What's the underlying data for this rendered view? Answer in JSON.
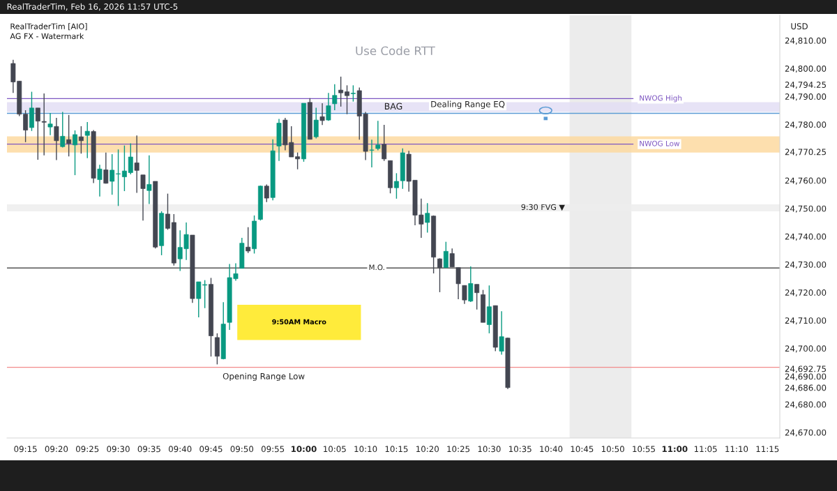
{
  "chart_data": {
    "type": "candlestick",
    "subtitle": "Use Code RTT",
    "ylabel": "USD",
    "annotations": [
      "RealTraderTim, Feb 16, 2026 11:57 UTC-5",
      "RealTraderTim [AIO]",
      "AG FX - Watermark",
      "9:50AM Macro"
    ],
    "x": [
      "2026-02-16T09:13",
      "2026-02-16T09:14",
      "2026-02-16T09:15",
      "2026-02-16T09:16",
      "2026-02-16T09:17",
      "2026-02-16T09:18",
      "2026-02-16T09:19",
      "2026-02-16T09:20",
      "2026-02-16T09:21",
      "2026-02-16T09:22",
      "2026-02-16T09:23",
      "2026-02-16T09:24",
      "2026-02-16T09:25",
      "2026-02-16T09:26",
      "2026-02-16T09:27",
      "2026-02-16T09:28",
      "2026-02-16T09:29",
      "2026-02-16T09:30",
      "2026-02-16T09:31",
      "2026-02-16T09:32",
      "2026-02-16T09:33",
      "2026-02-16T09:34",
      "2026-02-16T09:35",
      "2026-02-16T09:36",
      "2026-02-16T09:37",
      "2026-02-16T09:38",
      "2026-02-16T09:39",
      "2026-02-16T09:40",
      "2026-02-16T09:41",
      "2026-02-16T09:42",
      "2026-02-16T09:43",
      "2026-02-16T09:44",
      "2026-02-16T09:45",
      "2026-02-16T09:46",
      "2026-02-16T09:47",
      "2026-02-16T09:48",
      "2026-02-16T09:49",
      "2026-02-16T09:50",
      "2026-02-16T09:51",
      "2026-02-16T09:52",
      "2026-02-16T09:53",
      "2026-02-16T09:54",
      "2026-02-16T09:55",
      "2026-02-16T09:56",
      "2026-02-16T09:57",
      "2026-02-16T09:58",
      "2026-02-16T09:59",
      "2026-02-16T10:00",
      "2026-02-16T10:01",
      "2026-02-16T10:02",
      "2026-02-16T10:03",
      "2026-02-16T10:04",
      "2026-02-16T10:05",
      "2026-02-16T10:06",
      "2026-02-16T10:07",
      "2026-02-16T10:08",
      "2026-02-16T10:09",
      "2026-02-16T10:10",
      "2026-02-16T10:11",
      "2026-02-16T10:12",
      "2026-02-16T10:13",
      "2026-02-16T10:14",
      "2026-02-16T10:15",
      "2026-02-16T10:16",
      "2026-02-16T10:17",
      "2026-02-16T10:18",
      "2026-02-16T10:19",
      "2026-02-16T10:20",
      "2026-02-16T10:21",
      "2026-02-16T10:22",
      "2026-02-16T10:23",
      "2026-02-16T10:24",
      "2026-02-16T10:25",
      "2026-02-16T10:26",
      "2026-02-16T10:27",
      "2026-02-16T10:28",
      "2026-02-16T10:29",
      "2026-02-16T10:30",
      "2026-02-16T10:31",
      "2026-02-16T10:32",
      "2026-02-16T10:33"
    ],
    "ohlc": [
      [
        24801.8,
        24803.1,
        24791.3,
        24795.2
      ],
      [
        24795.5,
        24795.6,
        24783.0,
        24783.7
      ],
      [
        24783.7,
        24785.1,
        24773.7,
        24778.0
      ],
      [
        24778.9,
        24791.7,
        24777.7,
        24785.9
      ],
      [
        24785.9,
        24785.9,
        24767.4,
        24781.2
      ],
      [
        24781.1,
        24791.1,
        24769.0,
        24780.8
      ],
      [
        24779.1,
        24784.1,
        24776.2,
        24780.2
      ],
      [
        24779.3,
        24782.4,
        24767.3,
        24774.2
      ],
      [
        24772.1,
        24784.5,
        24771.8,
        24775.8
      ],
      [
        24774.6,
        24783.4,
        24768.6,
        24773.2
      ],
      [
        24772.7,
        24777.9,
        24761.9,
        24776.4
      ],
      [
        24775.6,
        24779.4,
        24769.6,
        24774.2
      ],
      [
        24776.1,
        24780.9,
        24768.0,
        24777.6
      ],
      [
        24777.5,
        24778.0,
        24759.1,
        24760.8
      ],
      [
        24760.3,
        24765.6,
        24754.3,
        24764.1
      ],
      [
        24763.8,
        24770.0,
        24758.9,
        24759.0
      ],
      [
        24759.7,
        24769.4,
        24754.9,
        24763.7
      ],
      [
        24762.3,
        24771.1,
        24750.9,
        24762.4
      ],
      [
        24761.3,
        24772.5,
        24756.2,
        24763.4
      ],
      [
        24762.8,
        24773.3,
        24762.2,
        24768.4
      ],
      [
        24766.3,
        24776.1,
        24755.6,
        24763.6
      ],
      [
        24762.0,
        24762.0,
        24745.7,
        24757.1
      ],
      [
        24756.4,
        24769.0,
        24751.6,
        24758.6
      ],
      [
        24759.7,
        24759.7,
        24735.7,
        24736.2
      ],
      [
        24736.7,
        24749.0,
        24733.3,
        24748.3
      ],
      [
        24748.0,
        24755.3,
        24742.4,
        24742.9
      ],
      [
        24745.0,
        24748.0,
        24729.6,
        24730.5
      ],
      [
        24732.0,
        24742.2,
        24727.7,
        24736.1
      ],
      [
        24735.6,
        24745.0,
        24731.6,
        24740.7
      ],
      [
        24740.5,
        24740.5,
        24716.3,
        24717.8
      ],
      [
        24717.8,
        24723.8,
        24711.1,
        24723.8
      ],
      [
        24722.6,
        24724.4,
        24714.4,
        24722.8
      ],
      [
        24722.9,
        24725.2,
        24697.1,
        24704.5
      ],
      [
        24703.9,
        24705.4,
        24694.3,
        24697.2
      ],
      [
        24696.3,
        24716.5,
        24696.1,
        24708.7
      ],
      [
        24709.3,
        24730.2,
        24706.6,
        24725.3
      ],
      [
        24724.9,
        24730.4,
        24724.2,
        24726.7
      ],
      [
        24728.6,
        24739.5,
        24728.6,
        24737.6
      ],
      [
        24736.2,
        24743.3,
        24734.1,
        24734.8
      ],
      [
        24735.6,
        24747.5,
        24733.9,
        24745.5
      ],
      [
        24746.1,
        24758.2,
        24745.7,
        24758.0
      ],
      [
        24758.0,
        24758.6,
        24752.3,
        24753.7
      ],
      [
        24753.9,
        24774.7,
        24752.9,
        24770.6
      ],
      [
        24772.3,
        24782.0,
        24767.0,
        24780.5
      ],
      [
        24781.6,
        24782.4,
        24770.8,
        24772.7
      ],
      [
        24773.6,
        24779.4,
        24768.4,
        24768.4
      ],
      [
        24768.5,
        24770.0,
        24764.0,
        24767.7
      ],
      [
        24767.7,
        24787.6,
        24766.7,
        24787.6
      ],
      [
        24787.9,
        24789.4,
        24774.7,
        24774.7
      ],
      [
        24775.6,
        24786.0,
        24775.0,
        24781.6
      ],
      [
        24782.8,
        24787.6,
        24779.8,
        24781.4
      ],
      [
        24781.6,
        24791.3,
        24781.3,
        24786.7
      ],
      [
        24787.4,
        24794.4,
        24785.1,
        24790.4
      ],
      [
        24792.3,
        24797.1,
        24786.4,
        24791.3
      ],
      [
        24791.7,
        24794.0,
        24783.7,
        24790.3
      ],
      [
        24791.0,
        24794.0,
        24788.2,
        24791.2
      ],
      [
        24792.1,
        24793.2,
        24774.6,
        24783.0
      ],
      [
        24783.8,
        24784.5,
        24767.3,
        24770.4
      ],
      [
        24770.8,
        24774.6,
        24764.7,
        24770.9
      ],
      [
        24771.4,
        24781.3,
        24770.8,
        24772.7
      ],
      [
        24772.9,
        24779.9,
        24767.0,
        24767.7
      ],
      [
        24767.1,
        24767.1,
        24755.4,
        24757.4
      ],
      [
        24757.4,
        24762.6,
        24753.5,
        24759.7
      ],
      [
        24759.9,
        24771.5,
        24757.0,
        24769.9
      ],
      [
        24769.4,
        24770.6,
        24756.0,
        24759.7
      ],
      [
        24760.1,
        24760.1,
        24744.0,
        24747.6
      ],
      [
        24747.7,
        24753.5,
        24739.5,
        24744.4
      ],
      [
        24745.0,
        24751.9,
        24741.4,
        24748.3
      ],
      [
        24747.3,
        24747.5,
        24726.8,
        24732.6
      ],
      [
        24732.0,
        24732.2,
        24720.1,
        24728.9
      ],
      [
        24728.9,
        24738.1,
        24728.9,
        24734.7
      ],
      [
        24733.9,
        24735.7,
        24729.1,
        24729.1
      ],
      [
        24728.9,
        24728.9,
        24717.6,
        24723.1
      ],
      [
        24722.5,
        24722.5,
        24715.9,
        24717.3
      ],
      [
        24716.9,
        24729.3,
        24716.6,
        24723.2
      ],
      [
        24722.9,
        24722.9,
        24713.9,
        24719.9
      ],
      [
        24719.2,
        24720.9,
        24709.3,
        24709.3
      ],
      [
        24708.5,
        24722.5,
        24705.4,
        24714.9
      ],
      [
        24715.3,
        24715.3,
        24699.0,
        24700.4
      ],
      [
        24699.0,
        24713.3,
        24697.8,
        24704.2
      ],
      [
        24703.7,
        24703.9,
        24685.5,
        24686.0
      ]
    ],
    "colors": [
      "#434651",
      "#434651",
      "#434651",
      "#089981",
      "#434651",
      "#434651",
      "#089981",
      "#434651",
      "#089981",
      "#434651",
      "#089981",
      "#434651",
      "#089981",
      "#434651",
      "#089981",
      "#434651",
      "#089981",
      "#089981",
      "#089981",
      "#089981",
      "#434651",
      "#434651",
      "#089981",
      "#434651",
      "#089981",
      "#434651",
      "#434651",
      "#089981",
      "#089981",
      "#434651",
      "#089981",
      "#089981",
      "#434651",
      "#434651",
      "#089981",
      "#089981",
      "#089981",
      "#089981",
      "#434651",
      "#089981",
      "#089981",
      "#434651",
      "#089981",
      "#089981",
      "#434651",
      "#434651",
      "#434651",
      "#089981",
      "#434651",
      "#089981",
      "#434651",
      "#089981",
      "#089981",
      "#434651",
      "#434651",
      "#089981",
      "#434651",
      "#434651",
      "#089981",
      "#089981",
      "#434651",
      "#434651",
      "#089981",
      "#089981",
      "#434651",
      "#434651",
      "#434651",
      "#089981",
      "#434651",
      "#434651",
      "#089981",
      "#434651",
      "#434651",
      "#434651",
      "#089981",
      "#434651",
      "#434651",
      "#089981",
      "#434651",
      "#089981",
      "#434651"
    ],
    "xlim": [
      "2026-02-16T09:12",
      "2026-02-16T11:17"
    ],
    "xticks": [
      {
        "value": "2026-02-16T09:15",
        "label": "09:15"
      },
      {
        "value": "2026-02-16T09:20",
        "label": "09:20"
      },
      {
        "value": "2026-02-16T09:25",
        "label": "09:25"
      },
      {
        "value": "2026-02-16T09:30",
        "label": "09:30"
      },
      {
        "value": "2026-02-16T09:35",
        "label": "09:35"
      },
      {
        "value": "2026-02-16T09:40",
        "label": "09:40"
      },
      {
        "value": "2026-02-16T09:45",
        "label": "09:45"
      },
      {
        "value": "2026-02-16T09:50",
        "label": "09:50"
      },
      {
        "value": "2026-02-16T09:55",
        "label": "09:55"
      },
      {
        "value": "2026-02-16T10:00",
        "label": "10:00"
      },
      {
        "value": "2026-02-16T10:05",
        "label": "10:05"
      },
      {
        "value": "2026-02-16T10:10",
        "label": "10:10"
      },
      {
        "value": "2026-02-16T10:15",
        "label": "10:15"
      },
      {
        "value": "2026-02-16T10:20",
        "label": "10:20"
      },
      {
        "value": "2026-02-16T10:25",
        "label": "10:25"
      },
      {
        "value": "2026-02-16T10:30",
        "label": "10:30"
      },
      {
        "value": "2026-02-16T10:35",
        "label": "10:35"
      },
      {
        "value": "2026-02-16T10:40",
        "label": "10:40"
      },
      {
        "value": "2026-02-16T10:45",
        "label": "10:45"
      },
      {
        "value": "2026-02-16T10:50",
        "label": "10:50"
      },
      {
        "value": "2026-02-16T10:55",
        "label": "10:55"
      },
      {
        "value": "2026-02-16T11:00",
        "label": "11:00"
      },
      {
        "value": "2026-02-16T11:05",
        "label": "11:05"
      },
      {
        "value": "2026-02-16T11:10",
        "label": "11:10"
      },
      {
        "value": "2026-02-16T11:15",
        "label": "11:15"
      }
    ],
    "ylim": [
      24668,
      24819
    ],
    "yticks": [
      {
        "value": 24810,
        "label": "24,810.00"
      },
      {
        "value": 24800,
        "label": "24,800.00"
      },
      {
        "value": 24794.25,
        "label": "24,794.25"
      },
      {
        "value": 24790,
        "label": "24,790.00"
      },
      {
        "value": 24780,
        "label": "24,780.00"
      },
      {
        "value": 24770.25,
        "label": "24,770.25"
      },
      {
        "value": 24760,
        "label": "24,760.00"
      },
      {
        "value": 24750,
        "label": "24,750.00"
      },
      {
        "value": 24740,
        "label": "24,740.00"
      },
      {
        "value": 24730,
        "label": "24,730.00"
      },
      {
        "value": 24720,
        "label": "24,720.00"
      },
      {
        "value": 24710,
        "label": "24,710.00"
      },
      {
        "value": 24700,
        "label": "24,700.00"
      },
      {
        "value": 24692.75,
        "label": "24,692.75"
      },
      {
        "value": 24690,
        "label": "24,690.00"
      },
      {
        "value": 24686,
        "label": "24,686.00"
      },
      {
        "value": 24680,
        "label": "24,680.00"
      },
      {
        "value": 24670,
        "label": "24,670.00"
      }
    ],
    "ref_lines": [
      {
        "axis": "y",
        "value": 24789.25,
        "label": "NWOG High",
        "color": "#7e57c2"
      },
      {
        "axis": "y",
        "value": 24773.0,
        "label": "NWOG Low",
        "color": "#7e57c2"
      },
      {
        "axis": "y",
        "value": 24728.75,
        "label": "M.O.",
        "color": "#555555"
      },
      {
        "axis": "y",
        "value": 24693.25,
        "label": "Opening Range Low",
        "color": "#f28b8b"
      },
      {
        "axis": "y",
        "value": 24784.0,
        "label": "Dealing Range EQ",
        "color": "#5b9bd5"
      }
    ],
    "bands": [
      {
        "axis": "x",
        "from": "2026-02-16T10:43",
        "to": "2026-02-16T10:53",
        "color": "#ececec"
      },
      {
        "axis": "y",
        "from": 24770.0,
        "to": 24775.75,
        "color": "#fdd9a0"
      },
      {
        "axis": "y",
        "from": 24749.0,
        "to": 24751.5,
        "label": "9:30 FVG ▼",
        "color": "#ededed"
      },
      {
        "axis": "y",
        "from": 24784.5,
        "to": 24788.0,
        "label": "BAG",
        "color": "#e3def5"
      }
    ],
    "grid": false,
    "legend": false
  }
}
